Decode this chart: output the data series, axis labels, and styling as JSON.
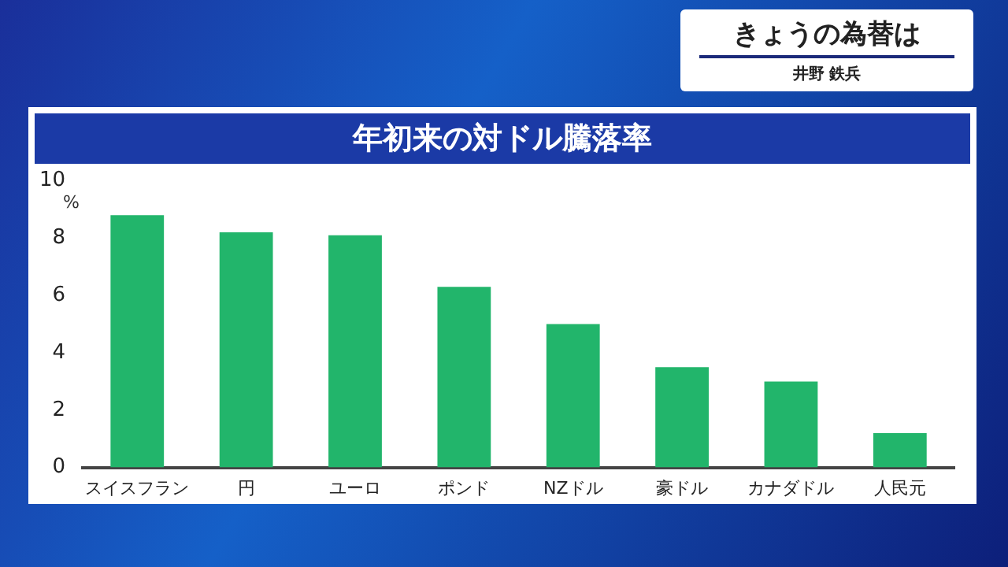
{
  "chart_data": {
    "type": "bar",
    "title": "年初来の対ドル騰落率",
    "ylabel": "%",
    "categories": [
      "スイスフラン",
      "円",
      "ユーロ",
      "ポンド",
      "NZドル",
      "豪ドル",
      "カナダドル",
      "人民元"
    ],
    "values": [
      8.8,
      8.2,
      8.1,
      6.3,
      5.0,
      3.5,
      3.0,
      1.2
    ],
    "color": "#22b56b",
    "ylim": [
      0,
      10
    ],
    "yticks": [
      0,
      2,
      4,
      6,
      8,
      10
    ],
    "grid": false,
    "legend": false,
    "annotations": [
      "きょうの為替は",
      "井野 鉄兵"
    ]
  }
}
